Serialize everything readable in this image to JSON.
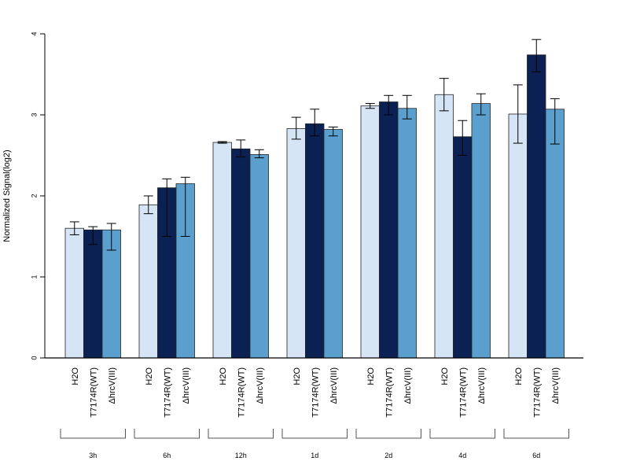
{
  "chart_data": {
    "type": "bar",
    "title": "",
    "xlabel": "",
    "ylabel": "Normalized Signal(log2)",
    "ylim": [
      0,
      4
    ],
    "yticks": [
      0,
      1,
      2,
      3,
      4
    ],
    "grid": false,
    "legend": "none",
    "categories": [
      "3h",
      "6h",
      "12h",
      "1d",
      "2d",
      "4d",
      "6d"
    ],
    "series": [
      {
        "name": "H2O",
        "color": "#d6e5f5",
        "values": [
          1.6,
          1.89,
          2.66,
          2.83,
          3.11,
          3.25,
          3.01
        ],
        "err_low": [
          1.52,
          1.78,
          2.65,
          2.7,
          3.08,
          3.05,
          2.65
        ],
        "err_high": [
          1.68,
          2.0,
          2.67,
          2.97,
          3.14,
          3.45,
          3.37
        ]
      },
      {
        "name": "T7174R(WT)",
        "color": "#0b2154",
        "values": [
          1.58,
          2.1,
          2.58,
          2.89,
          3.16,
          2.73,
          3.74
        ],
        "err_low": [
          1.4,
          1.5,
          2.48,
          2.74,
          3.0,
          2.5,
          3.53
        ],
        "err_high": [
          1.62,
          2.21,
          2.69,
          3.07,
          3.24,
          2.93,
          3.93
        ]
      },
      {
        "name": "ΔhrcV(III)",
        "color": "#5a9fcd",
        "values": [
          1.58,
          2.15,
          2.51,
          2.82,
          3.08,
          3.14,
          3.07
        ],
        "err_low": [
          1.33,
          1.5,
          2.47,
          2.74,
          2.95,
          3.0,
          2.64
        ],
        "err_high": [
          1.66,
          2.23,
          2.57,
          2.85,
          3.24,
          3.26,
          3.2
        ]
      }
    ]
  }
}
